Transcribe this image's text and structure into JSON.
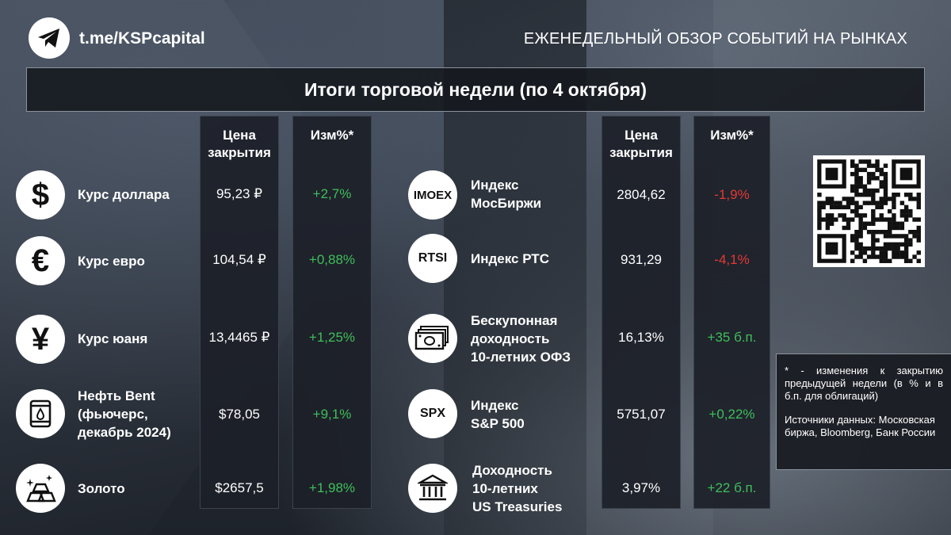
{
  "header": {
    "channel": "t.me/KSPcapital",
    "overview": "ЕЖЕНЕДЕЛЬНЫЙ ОБЗОР СОБЫТИЙ НА РЫНКАХ",
    "title": "Итоги торговой недели (по 4 октября)"
  },
  "columns": {
    "price_l1": "Цена",
    "price_l2": "закрытия",
    "change": "Изм%*"
  },
  "left_rows": [
    {
      "icon": "dollar-icon",
      "label1": "Курс доллара",
      "label2": "",
      "label3": "",
      "price": "95,23 ₽",
      "change": "+2,7%"
    },
    {
      "icon": "euro-icon",
      "label1": "Курс евро",
      "label2": "",
      "label3": "",
      "price": "104,54 ₽",
      "change": "+0,88%"
    },
    {
      "icon": "yuan-icon",
      "label1": "Курс юаня",
      "label2": "",
      "label3": "",
      "price": "13,4465 ₽",
      "change": "+1,25%"
    },
    {
      "icon": "oil-barrel-icon",
      "label1": "Нефть Bent",
      "label2": "(фьючерс,",
      "label3": "декабрь 2024)",
      "price": "$78,05",
      "change": "+9,1%"
    },
    {
      "icon": "gold-bars-icon",
      "label1": "Золото",
      "label2": "",
      "label3": "",
      "price": "$2657,5",
      "change": "+1,98%"
    }
  ],
  "right_rows": [
    {
      "icon_text": "IMOEX",
      "label1": "Индекс",
      "label2": "МосБиржи",
      "label3": "",
      "price": "2804,62",
      "change": "-1,9%"
    },
    {
      "icon_text": "RTSI",
      "label1": "Индекс РТС",
      "label2": "",
      "label3": "",
      "price": "931,29",
      "change": "-4,1%"
    },
    {
      "icon_text": "",
      "label1": "Бескупонная",
      "label2": "доходность",
      "label3": "10-летних ОФЗ",
      "price": "16,13%",
      "change": "+35 б.п."
    },
    {
      "icon_text": "SPX",
      "label1": "Индекс",
      "label2": "S&P 500",
      "label3": "",
      "price": "5751,07",
      "change": "+0,22%"
    },
    {
      "icon_text": "",
      "label1": "Доходность",
      "label2": "10-летних",
      "label3": "US Treasuries",
      "price": "3,97%",
      "change": "+22 б.п."
    }
  ],
  "note": {
    "line1": "* - изменения к закрытию предыдущей недели (в % и в б.п. для облигаций)",
    "line2": "Источники данных: Московская биржа, Bloomberg, Банк России"
  },
  "colors": {
    "up": "#3fbf5a",
    "down": "#e53935"
  }
}
